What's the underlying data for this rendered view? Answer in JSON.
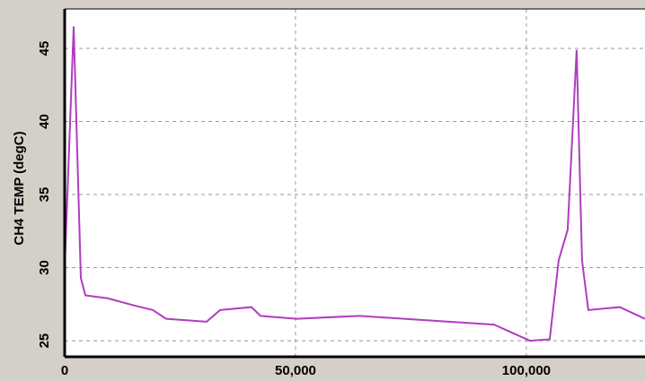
{
  "chart_data": {
    "type": "line",
    "ylabel": "CH4 TEMP (degC)",
    "x": [
      0,
      1950,
      3500,
      4480,
      9340,
      15180,
      19070,
      21990,
      30740,
      33660,
      40470,
      42410,
      50190,
      63810,
      83270,
      93000,
      100780,
      105060,
      107000,
      108950,
      110890,
      112060,
      113420,
      120230,
      125680
    ],
    "series": [
      {
        "color": "#b03cc0",
        "values": [
          30,
          46.5,
          29.3,
          28.1,
          27.9,
          27.4,
          27.1,
          26.5,
          26.3,
          27.1,
          27.3,
          26.7,
          26.5,
          26.7,
          26.3,
          26.1,
          25,
          25.1,
          30.5,
          32.6,
          44.9,
          30.5,
          27.1,
          27.3,
          26.5
        ]
      }
    ],
    "xlim": [
      0,
      125700
    ],
    "ylim": [
      23.9,
      47.7
    ],
    "xticks": [
      0,
      {
        "value": 50000,
        "label": "50,000"
      },
      {
        "value": 100000,
        "label": "100,000"
      }
    ],
    "yticks": [
      25,
      30,
      35,
      40,
      45
    ],
    "grid": true
  }
}
